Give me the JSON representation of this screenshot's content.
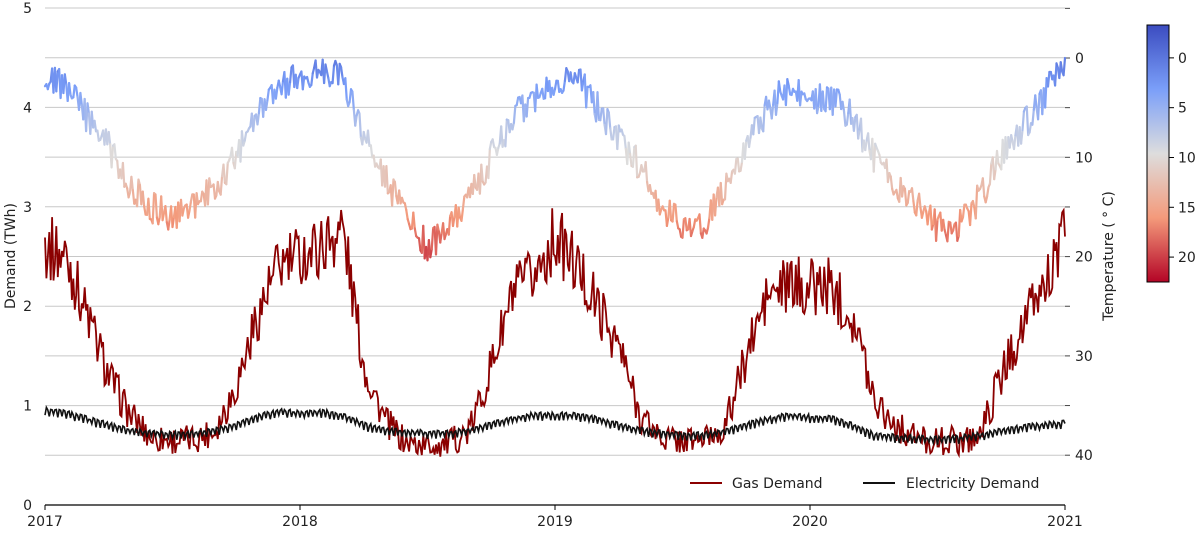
{
  "chart_data": {
    "type": "line",
    "title": "",
    "x_start": "2017-01",
    "x_step": "month",
    "xticks": [
      "2017",
      "2018",
      "2019",
      "2020",
      "2021"
    ],
    "xlim": [
      2017,
      2021
    ],
    "ylabel": "Demand (TWh)",
    "ylim": [
      0,
      5
    ],
    "yticks": [
      "0",
      "1",
      "2",
      "3",
      "4",
      "5"
    ],
    "y2label": "Temperature ( ° C)",
    "y2lim": [
      -5,
      45
    ],
    "y2_inverted": true,
    "y2ticks": [
      "0",
      "10",
      "20",
      "30",
      "40"
    ],
    "grid": true,
    "legend_placement": "bottom-right",
    "series": [
      {
        "name": "Gas Demand",
        "axis": "left",
        "color": "#8b0000",
        "values": [
          2.6,
          2.5,
          1.9,
          1.3,
          0.9,
          0.68,
          0.65,
          0.66,
          0.75,
          1.2,
          1.9,
          2.4,
          2.5,
          2.6,
          2.8,
          1.4,
          0.85,
          0.62,
          0.6,
          0.62,
          0.75,
          1.4,
          2.1,
          2.3,
          2.7,
          2.4,
          2.0,
          1.6,
          0.9,
          0.68,
          0.65,
          0.66,
          0.78,
          1.5,
          2.1,
          2.2,
          2.2,
          2.2,
          1.9,
          1.1,
          0.8,
          0.67,
          0.64,
          0.65,
          0.7,
          1.3,
          1.8,
          2.2,
          2.7
        ]
      },
      {
        "name": "Electricity Demand",
        "axis": "left",
        "color": "#111111",
        "values": [
          0.95,
          0.92,
          0.86,
          0.8,
          0.75,
          0.72,
          0.71,
          0.72,
          0.75,
          0.8,
          0.88,
          0.94,
          0.92,
          0.93,
          0.9,
          0.8,
          0.75,
          0.73,
          0.72,
          0.72,
          0.75,
          0.8,
          0.87,
          0.9,
          0.9,
          0.9,
          0.86,
          0.8,
          0.75,
          0.72,
          0.7,
          0.7,
          0.74,
          0.8,
          0.86,
          0.9,
          0.88,
          0.87,
          0.8,
          0.7,
          0.68,
          0.67,
          0.66,
          0.67,
          0.7,
          0.74,
          0.78,
          0.8,
          0.82
        ]
      },
      {
        "name": "Temperature",
        "axis": "right",
        "colormap": "coolwarm",
        "values": [
          1.5,
          3,
          6,
          9,
          13,
          15,
          16,
          15,
          13,
          10,
          6,
          3,
          2,
          1,
          2,
          8,
          12,
          16,
          19,
          17,
          14,
          10,
          6,
          4,
          2,
          2,
          5,
          8,
          11,
          15,
          17,
          17,
          13,
          9,
          5,
          3,
          4,
          4,
          6,
          10,
          13,
          15,
          17,
          17,
          14,
          10,
          7,
          4,
          0
        ]
      }
    ],
    "colorbar": {
      "ticks": [
        "0",
        "5",
        "10",
        "15",
        "20"
      ],
      "range": [
        -3.3,
        22.5
      ],
      "colors": [
        "#3b4cc0",
        "#7b9ff9",
        "#dddddd",
        "#f49a7b",
        "#b40426"
      ]
    }
  }
}
